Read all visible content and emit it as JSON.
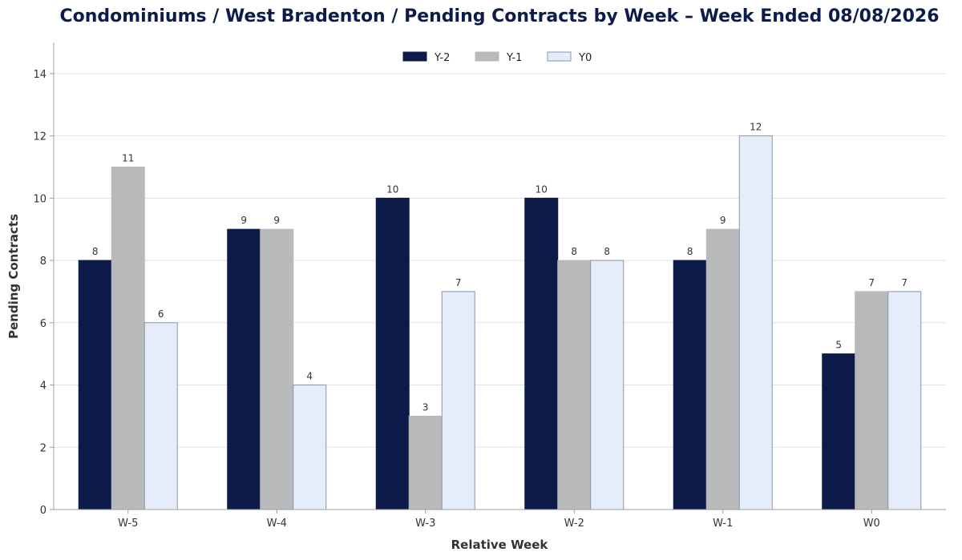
{
  "chart_data": {
    "type": "bar",
    "title": "Condominiums / West Bradenton / Pending Contracts by Week – Week Ended 08/08/2026",
    "xlabel": "Relative Week",
    "ylabel": "Pending Contracts",
    "categories": [
      "W-5",
      "W-4",
      "W-3",
      "W-2",
      "W-1",
      "W0"
    ],
    "series": [
      {
        "name": "Y-2",
        "values": [
          8,
          9,
          10,
          10,
          8,
          5
        ],
        "color": "#0d1b4a",
        "edge": "#0d1b4a"
      },
      {
        "name": "Y-1",
        "values": [
          11,
          9,
          3,
          8,
          9,
          7
        ],
        "color": "#b8b9bb",
        "edge": "#b8b9bb"
      },
      {
        "name": "Y0",
        "values": [
          6,
          4,
          7,
          8,
          12,
          7
        ],
        "color": "#e6edfa",
        "edge": "#8a94a8"
      }
    ],
    "ylim": [
      0,
      15
    ],
    "yticks": [
      0,
      2,
      4,
      6,
      8,
      10,
      12,
      14
    ],
    "grid": true,
    "legend_position": "top-center",
    "data_labels": true
  }
}
